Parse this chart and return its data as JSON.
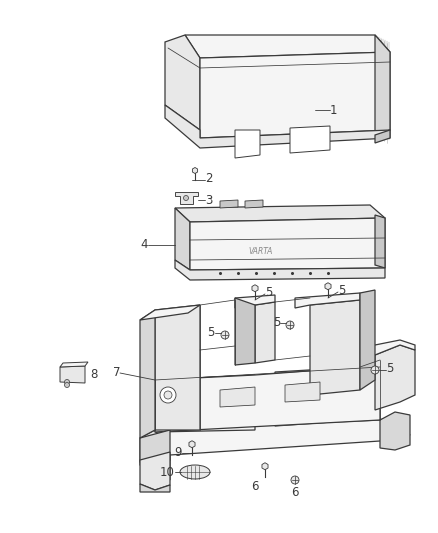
{
  "background_color": "#ffffff",
  "line_color": "#3a3a3a",
  "label_color": "#3a3a3a",
  "font_size_labels": 8.5,
  "fig_w": 4.38,
  "fig_h": 5.33,
  "dpi": 100,
  "lw_main": 0.9,
  "lw_thin": 0.55,
  "lw_shade": 0.4,
  "shade_color": "#b0b0b0",
  "face_light": "#f5f5f5",
  "face_mid": "#e8e8e8",
  "face_dark": "#d8d8d8",
  "face_darker": "#c8c8c8"
}
